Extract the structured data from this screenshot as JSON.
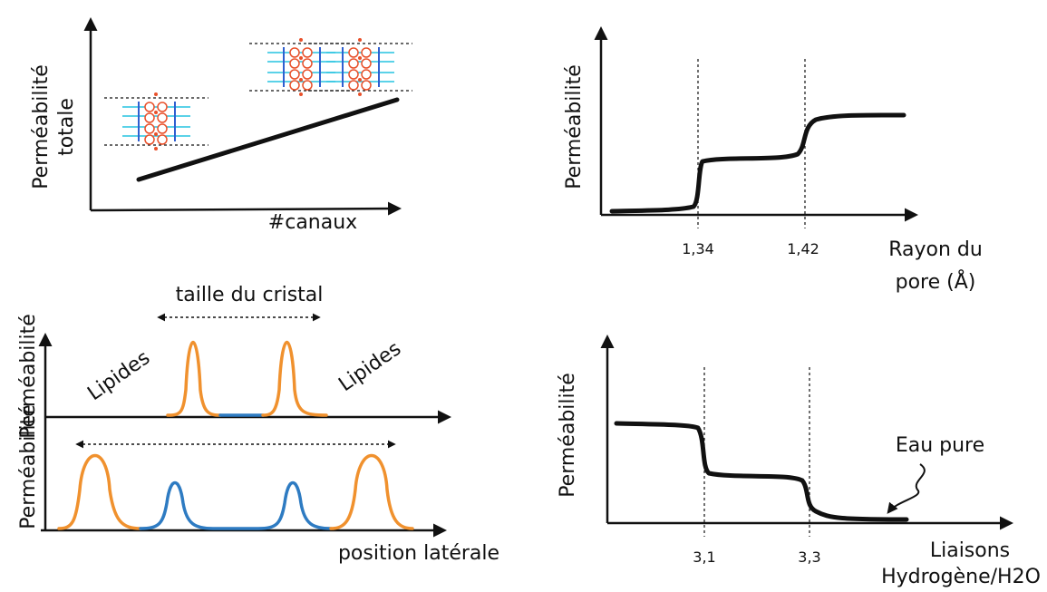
{
  "panels": [
    {
      "y_label_lines": [
        "Perméabilité",
        "totale"
      ],
      "x_label": "#canaux"
    },
    {
      "y_label": "Perméabilité",
      "ticks": [
        "1,34",
        "1,42"
      ],
      "x_label_lines": [
        "Rayon du",
        "pore (Å)"
      ]
    },
    {
      "y_label_upper": "Perméabilité",
      "y_label_lower": "Perméabilité",
      "crystal_label": "taille du cristal",
      "lipids_left": "Lipides",
      "lipids_right": "Lipides",
      "x_label": "position latérale"
    },
    {
      "y_label": "Perméabilité",
      "ticks": [
        "3,1",
        "3,3"
      ],
      "x_label_lines": [
        "Liaisons",
        "Hydrogène/H2O"
      ],
      "annotation": "Eau pure"
    }
  ]
}
